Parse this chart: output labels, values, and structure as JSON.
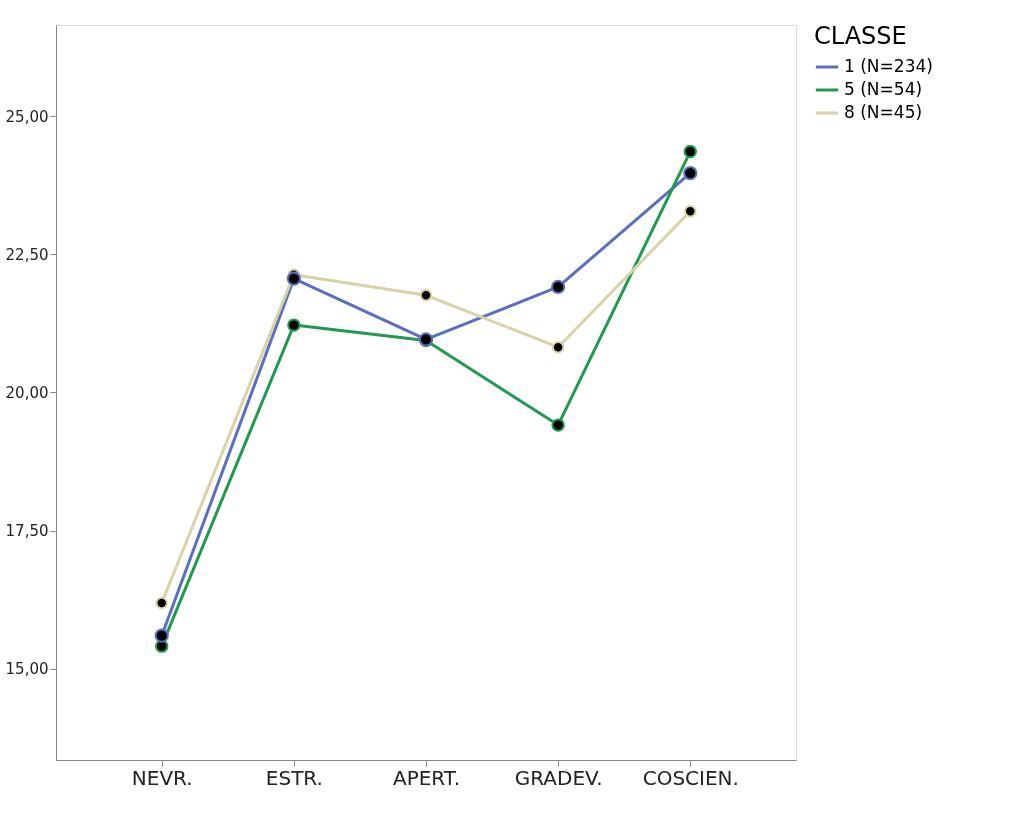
{
  "chart_data": {
    "type": "line",
    "categories": [
      "NEVR.",
      "ESTR.",
      "APERT.",
      "GRADEV.",
      "COSCIEN."
    ],
    "series": [
      {
        "name": "1 (N=234)",
        "color": "#5b6fbf",
        "values": [
          15.6,
          22.06,
          20.96,
          21.91,
          23.97
        ]
      },
      {
        "name": "5 (N=54)",
        "color": "#1f9a4e",
        "values": [
          15.41,
          21.22,
          20.94,
          19.41,
          24.36
        ]
      },
      {
        "name": "8 (N=45)",
        "color": "#d9d2a6",
        "values": [
          16.19,
          22.13,
          21.76,
          20.82,
          23.28
        ]
      }
    ],
    "legend_title": "CLASSE",
    "legend": "right",
    "ylim": [
      13.35,
      26.65
    ],
    "yticks": [
      {
        "value": 15,
        "label": "15,00"
      },
      {
        "value": 17.5,
        "label": "17,50"
      },
      {
        "value": 20,
        "label": "20,00"
      },
      {
        "value": 22.5,
        "label": "22,50"
      },
      {
        "value": 25,
        "label": "25,00"
      }
    ],
    "marker": "circle",
    "line_style": "solid",
    "grid": false
  }
}
